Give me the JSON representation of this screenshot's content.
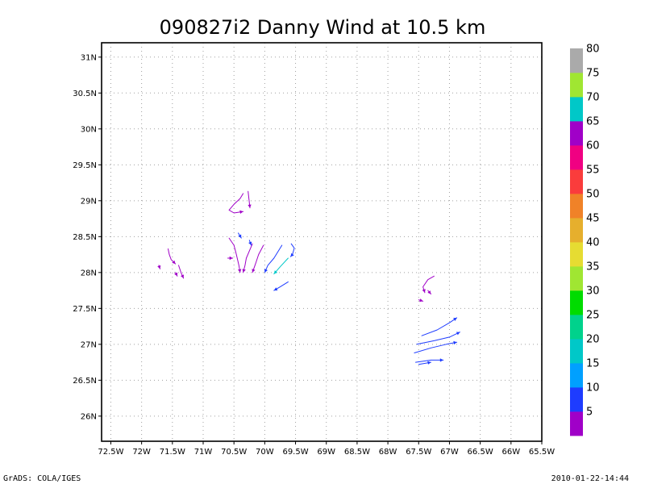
{
  "chart_data": {
    "type": "streamline",
    "title": "090827i2 Danny Wind at 10.5 km",
    "xlabel": "",
    "ylabel": "",
    "xlim": [
      -72.65,
      -65.5
    ],
    "ylim": [
      25.65,
      31.2
    ],
    "x_ticks": [
      {
        "value": -72.5,
        "label": "72.5W"
      },
      {
        "value": -72,
        "label": "72W"
      },
      {
        "value": -71.5,
        "label": "71.5W"
      },
      {
        "value": -71,
        "label": "71W"
      },
      {
        "value": -70.5,
        "label": "70.5W"
      },
      {
        "value": -70,
        "label": "70W"
      },
      {
        "value": -69.5,
        "label": "69.5W"
      },
      {
        "value": -69,
        "label": "69W"
      },
      {
        "value": -68.5,
        "label": "68.5W"
      },
      {
        "value": -68,
        "label": "68W"
      },
      {
        "value": -67.5,
        "label": "67.5W"
      },
      {
        "value": -67,
        "label": "67W"
      },
      {
        "value": -66.5,
        "label": "66.5W"
      },
      {
        "value": -66,
        "label": "66W"
      },
      {
        "value": -65.5,
        "label": "65.5W"
      }
    ],
    "y_ticks": [
      {
        "value": 26,
        "label": "26N"
      },
      {
        "value": 26.5,
        "label": "26.5N"
      },
      {
        "value": 27,
        "label": "27N"
      },
      {
        "value": 27.5,
        "label": "27.5N"
      },
      {
        "value": 28,
        "label": "28N"
      },
      {
        "value": 28.5,
        "label": "28.5N"
      },
      {
        "value": 29,
        "label": "29N"
      },
      {
        "value": 29.5,
        "label": "29.5N"
      },
      {
        "value": 30,
        "label": "30N"
      },
      {
        "value": 30.5,
        "label": "30.5N"
      },
      {
        "value": 31,
        "label": "31N"
      }
    ],
    "grid": true,
    "colorbar": {
      "placement": "right",
      "bins": [
        {
          "color": "#a000c8"
        },
        {
          "color": "#1e3cff"
        },
        {
          "color": "#00a0ff"
        },
        {
          "color": "#00c8c8"
        },
        {
          "color": "#00d28c"
        },
        {
          "color": "#00dc00"
        },
        {
          "color": "#a0e632"
        },
        {
          "color": "#e6dc32"
        },
        {
          "color": "#e6af2d"
        },
        {
          "color": "#f08228"
        },
        {
          "color": "#fa3c3c"
        },
        {
          "color": "#f00082"
        },
        {
          "color": "#a000c8"
        },
        {
          "color": "#00c8c8"
        },
        {
          "color": "#a0e632"
        },
        {
          "color": "#aaaaaa"
        }
      ],
      "labels": [
        "5",
        "10",
        "15",
        "20",
        "25",
        "30",
        "35",
        "40",
        "45",
        "50",
        "55",
        "60",
        "65",
        "70",
        "75",
        "80"
      ]
    },
    "streamlines": [
      {
        "color": "#a000c8",
        "points": [
          [
            -70.35,
            29.1
          ],
          [
            -70.4,
            29.03
          ],
          [
            -70.5,
            28.95
          ],
          [
            -70.58,
            28.87
          ],
          [
            -70.5,
            28.83
          ],
          [
            -70.35,
            28.85
          ]
        ]
      },
      {
        "color": "#a000c8",
        "points": [
          [
            -70.27,
            29.13
          ],
          [
            -70.26,
            29.05
          ],
          [
            -70.25,
            28.97
          ],
          [
            -70.24,
            28.9
          ]
        ]
      },
      {
        "color": "#a000c8",
        "points": [
          [
            -71.57,
            28.33
          ],
          [
            -71.55,
            28.25
          ],
          [
            -71.52,
            28.18
          ],
          [
            -71.45,
            28.12
          ]
        ]
      },
      {
        "color": "#a000c8",
        "points": [
          [
            -71.4,
            28.1
          ],
          [
            -71.36,
            28.0
          ],
          [
            -71.32,
            27.92
          ]
        ]
      },
      {
        "color": "#a000c8",
        "points": [
          [
            -71.72,
            28.1
          ],
          [
            -71.7,
            28.05
          ]
        ]
      },
      {
        "color": "#a000c8",
        "points": [
          [
            -71.45,
            28.0
          ],
          [
            -71.42,
            27.95
          ]
        ]
      },
      {
        "color": "#a000c8",
        "points": [
          [
            -70.58,
            28.48
          ],
          [
            -70.5,
            28.38
          ],
          [
            -70.46,
            28.25
          ],
          [
            -70.42,
            28.1
          ],
          [
            -70.4,
            28.0
          ]
        ]
      },
      {
        "color": "#a000c8",
        "points": [
          [
            -70.6,
            28.2
          ],
          [
            -70.52,
            28.2
          ]
        ]
      },
      {
        "color": "#a000c8",
        "points": [
          [
            -70.2,
            28.4
          ],
          [
            -70.25,
            28.3
          ],
          [
            -70.3,
            28.2
          ],
          [
            -70.32,
            28.1
          ],
          [
            -70.35,
            28.0
          ]
        ]
      },
      {
        "color": "#a000c8",
        "points": [
          [
            -70.02,
            28.38
          ],
          [
            -70.1,
            28.25
          ],
          [
            -70.15,
            28.12
          ],
          [
            -70.2,
            28.0
          ]
        ]
      },
      {
        "color": "#1e3cff",
        "points": [
          [
            -70.43,
            28.55
          ],
          [
            -70.38,
            28.48
          ]
        ]
      },
      {
        "color": "#1e3cff",
        "points": [
          [
            -70.25,
            28.45
          ],
          [
            -70.22,
            28.38
          ]
        ]
      },
      {
        "color": "#1e3cff",
        "points": [
          [
            -69.72,
            28.38
          ],
          [
            -69.85,
            28.2
          ],
          [
            -69.95,
            28.1
          ],
          [
            -70.0,
            28.0
          ]
        ]
      },
      {
        "color": "#00c8c8",
        "points": [
          [
            -69.62,
            28.2
          ],
          [
            -69.75,
            28.08
          ],
          [
            -69.85,
            27.98
          ]
        ]
      },
      {
        "color": "#1e3cff",
        "points": [
          [
            -69.57,
            28.4
          ],
          [
            -69.52,
            28.34
          ],
          [
            -69.55,
            28.25
          ],
          [
            -69.58,
            28.22
          ]
        ]
      },
      {
        "color": "#1e3cff",
        "points": [
          [
            -69.62,
            27.87
          ],
          [
            -69.75,
            27.8
          ],
          [
            -69.85,
            27.75
          ]
        ]
      },
      {
        "color": "#a000c8",
        "points": [
          [
            -67.25,
            27.95
          ],
          [
            -67.35,
            27.9
          ],
          [
            -67.43,
            27.8
          ],
          [
            -67.4,
            27.72
          ]
        ]
      },
      {
        "color": "#a000c8",
        "points": [
          [
            -67.35,
            27.75
          ],
          [
            -67.3,
            27.7
          ]
        ]
      },
      {
        "color": "#a000c8",
        "points": [
          [
            -67.5,
            27.62
          ],
          [
            -67.43,
            27.6
          ]
        ]
      },
      {
        "color": "#1e3cff",
        "points": [
          [
            -67.45,
            27.12
          ],
          [
            -67.2,
            27.2
          ],
          [
            -67.0,
            27.3
          ],
          [
            -66.88,
            27.37
          ]
        ]
      },
      {
        "color": "#1e3cff",
        "points": [
          [
            -67.53,
            27.0
          ],
          [
            -67.25,
            27.05
          ],
          [
            -67.0,
            27.1
          ],
          [
            -66.83,
            27.17
          ]
        ]
      },
      {
        "color": "#1e3cff",
        "points": [
          [
            -67.57,
            26.88
          ],
          [
            -67.3,
            26.95
          ],
          [
            -67.05,
            27.0
          ],
          [
            -66.88,
            27.03
          ]
        ]
      },
      {
        "color": "#1e3cff",
        "points": [
          [
            -67.55,
            26.75
          ],
          [
            -67.3,
            26.78
          ],
          [
            -67.1,
            26.78
          ]
        ]
      },
      {
        "color": "#1e3cff",
        "points": [
          [
            -67.5,
            26.72
          ],
          [
            -67.3,
            26.75
          ]
        ]
      }
    ],
    "footer_left": "GrADS: COLA/IGES",
    "footer_right": "2010-01-22-14:44"
  }
}
